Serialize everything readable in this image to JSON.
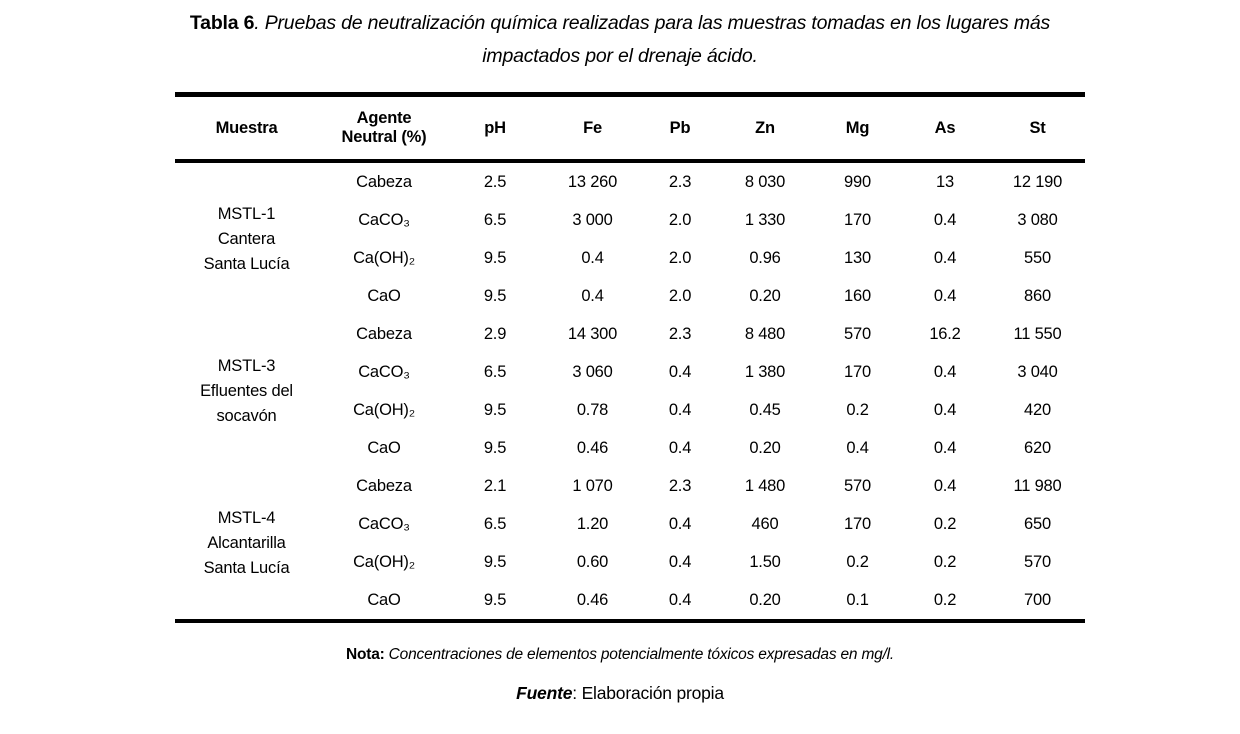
{
  "caption": {
    "label": "Tabla 6",
    "text": ". Pruebas de neutralización química realizadas para las muestras tomadas en los lugares más impactados por el drenaje ácido."
  },
  "table": {
    "columns": [
      "Muestra",
      "Agente Neutral (%)",
      "pH",
      "Fe",
      "Pb",
      "Zn",
      "Mg",
      "As",
      "St"
    ],
    "row_keys": [
      "agent",
      "ph",
      "fe",
      "pb",
      "zn",
      "mg",
      "as",
      "st"
    ],
    "groups": [
      {
        "sample_lines": [
          "MSTL-1",
          "Cantera",
          "Santa Lucía"
        ],
        "rows": [
          {
            "agent": "Cabeza",
            "ph": "2.5",
            "fe": "13 260",
            "pb": "2.3",
            "zn": "8 030",
            "mg": "990",
            "as": "13",
            "st": "12 190"
          },
          {
            "agent": "CaCO₃",
            "ph": "6.5",
            "fe": "3 000",
            "pb": "2.0",
            "zn": "1 330",
            "mg": "170",
            "as": "0.4",
            "st": "3 080"
          },
          {
            "agent": "Ca(OH)₂",
            "ph": "9.5",
            "fe": "0.4",
            "pb": "2.0",
            "zn": "0.96",
            "mg": "130",
            "as": "0.4",
            "st": "550"
          },
          {
            "agent": "CaO",
            "ph": "9.5",
            "fe": "0.4",
            "pb": "2.0",
            "zn": "0.20",
            "mg": "160",
            "as": "0.4",
            "st": "860"
          }
        ]
      },
      {
        "sample_lines": [
          "MSTL-3",
          "Efluentes del",
          "socavón"
        ],
        "rows": [
          {
            "agent": "Cabeza",
            "ph": "2.9",
            "fe": "14 300",
            "pb": "2.3",
            "zn": "8 480",
            "mg": "570",
            "as": "16.2",
            "st": "11 550"
          },
          {
            "agent": "CaCO₃",
            "ph": "6.5",
            "fe": "3 060",
            "pb": "0.4",
            "zn": "1 380",
            "mg": "170",
            "as": "0.4",
            "st": "3 040"
          },
          {
            "agent": "Ca(OH)₂",
            "ph": "9.5",
            "fe": "0.78",
            "pb": "0.4",
            "zn": "0.45",
            "mg": "0.2",
            "as": "0.4",
            "st": "420"
          },
          {
            "agent": "CaO",
            "ph": "9.5",
            "fe": "0.46",
            "pb": "0.4",
            "zn": "0.20",
            "mg": "0.4",
            "as": "0.4",
            "st": "620"
          }
        ]
      },
      {
        "sample_lines": [
          "MSTL-4",
          "Alcantarilla",
          "Santa Lucía"
        ],
        "rows": [
          {
            "agent": "Cabeza",
            "ph": "2.1",
            "fe": "1 070",
            "pb": "2.3",
            "zn": "1 480",
            "mg": "570",
            "as": "0.4",
            "st": "11 980"
          },
          {
            "agent": "CaCO₃",
            "ph": "6.5",
            "fe": "1.20",
            "pb": "0.4",
            "zn": "460",
            "mg": "170",
            "as": "0.2",
            "st": "650"
          },
          {
            "agent": "Ca(OH)₂",
            "ph": "9.5",
            "fe": "0.60",
            "pb": "0.4",
            "zn": "1.50",
            "mg": "0.2",
            "as": "0.2",
            "st": "570"
          },
          {
            "agent": "CaO",
            "ph": "9.5",
            "fe": "0.46",
            "pb": "0.4",
            "zn": "0.20",
            "mg": "0.1",
            "as": "0.2",
            "st": "700"
          }
        ]
      }
    ]
  },
  "note": {
    "label": "Nota:",
    "text": " Concentraciones de elementos potencialmente tóxicos expresadas en mg/l."
  },
  "source": {
    "label": "Fuente",
    "text": ": Elaboración propia"
  }
}
